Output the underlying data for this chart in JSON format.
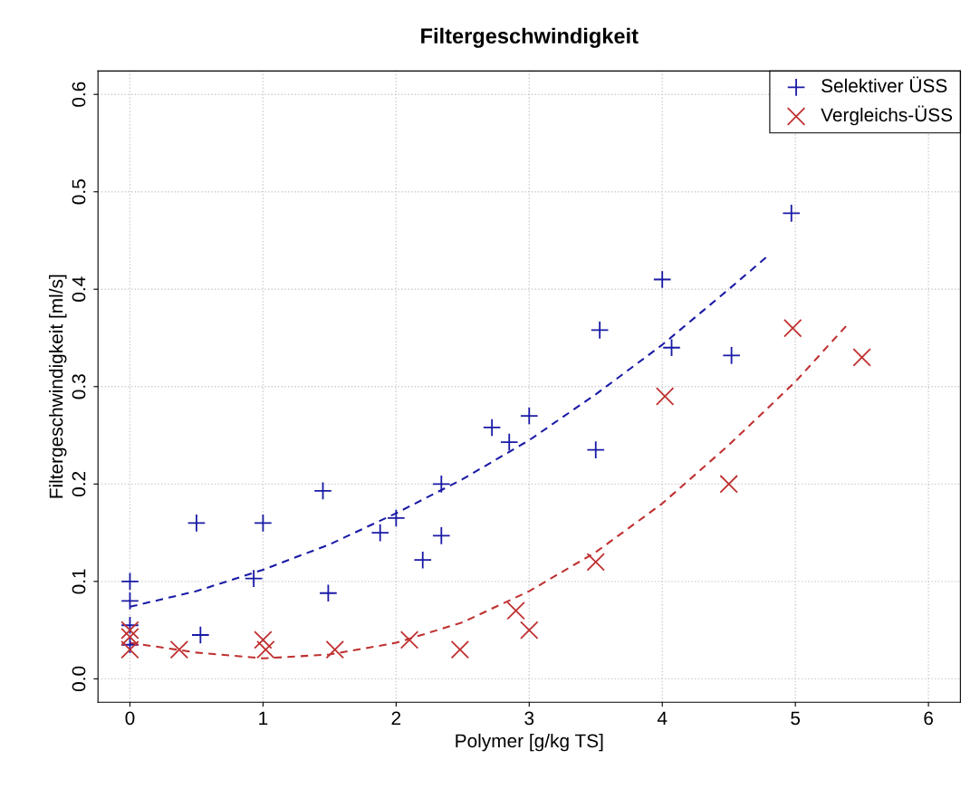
{
  "chart_data": {
    "type": "scatter",
    "title": "Filtergeschwindigkeit",
    "xlabel": "Polymer [g/kg TS]",
    "ylabel": "Filtergeschwindigkeit [ml/s]",
    "xlim": [
      -0.24,
      6.24
    ],
    "ylim": [
      -0.024,
      0.624
    ],
    "xticks": [
      0,
      1,
      2,
      3,
      4,
      5,
      6
    ],
    "yticks": [
      {
        "value": 0,
        "label": "0.0"
      },
      0.1,
      0.2,
      0.3,
      0.4,
      0.5,
      0.6
    ],
    "grid": true,
    "legend": "top right",
    "series": [
      {
        "name": "Selektiver ÜSS",
        "marker": "plus",
        "color": "#1a1aa6",
        "x": [
          0,
          0,
          0,
          0,
          0.5,
          0.53,
          0.93,
          1.0,
          1.45,
          1.49,
          1.88,
          2.0,
          2.2,
          2.34,
          2.34,
          2.72,
          2.85,
          3.0,
          3.5,
          3.53,
          4.0,
          4.07,
          4.52,
          4.97
        ],
        "values": [
          0.1,
          0.08,
          0.055,
          0.035,
          0.16,
          0.045,
          0.103,
          0.16,
          0.193,
          0.088,
          0.15,
          0.165,
          0.122,
          0.2,
          0.147,
          0.258,
          0.243,
          0.27,
          0.235,
          0.358,
          0.41,
          0.34,
          0.332,
          0.478
        ]
      },
      {
        "name": "Vergleichs-ÜSS",
        "marker": "cross",
        "color": "#c03030",
        "x": [
          0,
          0,
          0,
          0.37,
          1.0,
          1.02,
          1.54,
          2.1,
          2.48,
          2.9,
          3.0,
          3.5,
          4.02,
          4.5,
          4.98,
          5.5
        ],
        "values": [
          0.05,
          0.043,
          0.03,
          0.03,
          0.04,
          0.03,
          0.03,
          0.04,
          0.03,
          0.07,
          0.05,
          0.12,
          0.29,
          0.2,
          0.36,
          0.33
        ]
      },
      {
        "type": "line",
        "line_style": "dashed",
        "color": "#1a1aa6",
        "x": [
          0,
          0.5,
          1,
          1.5,
          2,
          2.5,
          3,
          3.5,
          4,
          4.5,
          4.8
        ],
        "values": [
          0.074,
          0.09,
          0.112,
          0.138,
          0.17,
          0.205,
          0.245,
          0.292,
          0.343,
          0.4,
          0.435
        ]
      },
      {
        "type": "line",
        "line_style": "dashed",
        "color": "#c03030",
        "x": [
          0,
          0.5,
          1,
          1.5,
          2,
          2.5,
          3,
          3.5,
          4,
          4.5,
          5,
          5.4
        ],
        "values": [
          0.037,
          0.027,
          0.021,
          0.025,
          0.037,
          0.058,
          0.09,
          0.13,
          0.18,
          0.24,
          0.305,
          0.365
        ]
      }
    ]
  }
}
